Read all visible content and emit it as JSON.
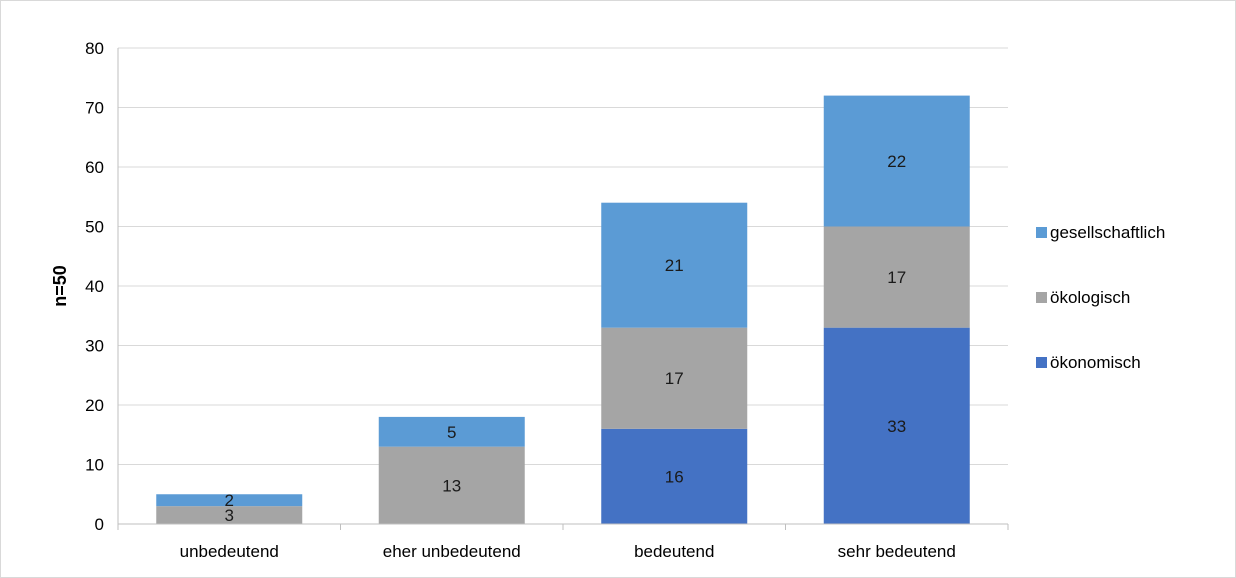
{
  "chart_data": {
    "type": "bar",
    "stacked": true,
    "categories": [
      "unbedeutend",
      "eher unbedeutend",
      "bedeutend",
      "sehr bedeutend"
    ],
    "series": [
      {
        "name": "ökonomisch",
        "color": "#4472C4",
        "values": [
          0,
          0,
          16,
          33
        ]
      },
      {
        "name": "ökologisch",
        "color": "#A5A5A5",
        "values": [
          3,
          13,
          17,
          17
        ]
      },
      {
        "name": "gesellschaftlich",
        "color": "#5B9BD5",
        "values": [
          2,
          5,
          21,
          22
        ]
      }
    ],
    "title": "",
    "xlabel": "",
    "ylabel": "n=50",
    "ylim": [
      0,
      80
    ],
    "yticks": [
      0,
      10,
      20,
      30,
      40,
      50,
      60,
      70,
      80
    ],
    "grid": true,
    "legend_position": "right",
    "legend_order": [
      "gesellschaftlich",
      "ökologisch",
      "ökonomisch"
    ]
  }
}
